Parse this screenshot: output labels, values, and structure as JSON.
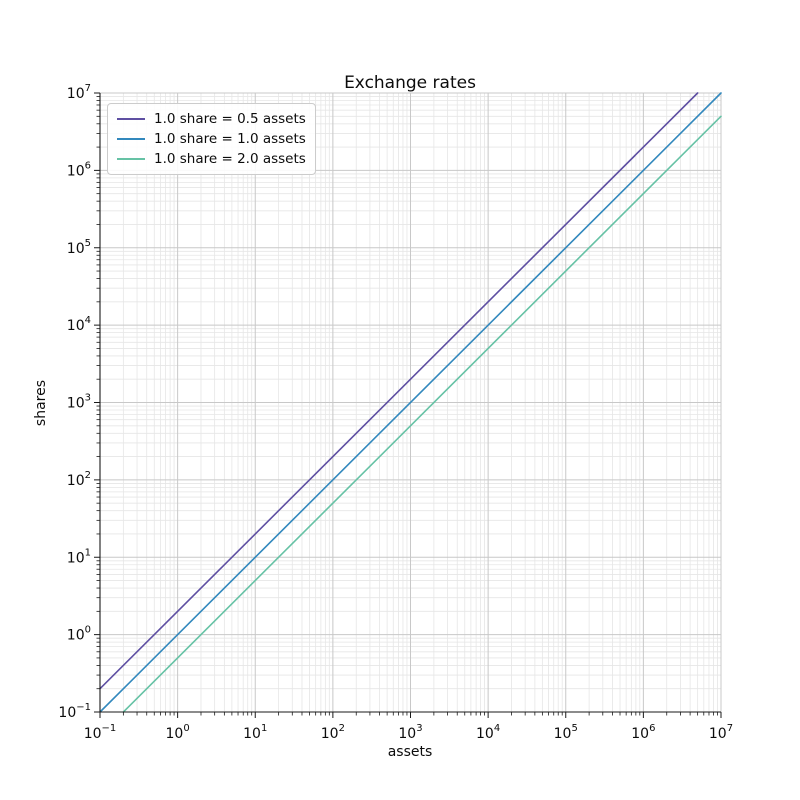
{
  "chart_data": {
    "type": "line",
    "title": "Exchange rates",
    "xlabel": "assets",
    "ylabel": "shares",
    "xscale": "log",
    "yscale": "log",
    "xlim": [
      0.1,
      10000000
    ],
    "ylim": [
      0.1,
      10000000
    ],
    "x_tick_exponents": [
      -1,
      0,
      1,
      2,
      3,
      4,
      5,
      6,
      7
    ],
    "y_tick_exponents": [
      -1,
      0,
      1,
      2,
      3,
      4,
      5,
      6,
      7
    ],
    "grid": {
      "major": true,
      "minor": true,
      "minor_multiples": [
        2,
        3,
        4,
        5,
        6,
        7,
        8,
        9
      ]
    },
    "legend_position": "upper left",
    "series": [
      {
        "name": "1.0 share = 0.5 assets",
        "color": "#5e4fa2",
        "assets_per_share": 0.5,
        "relation": "shares = assets / 0.5",
        "points": [
          {
            "assets": 0.1,
            "shares": 0.2
          },
          {
            "assets": 5000000,
            "shares": 10000000
          }
        ]
      },
      {
        "name": "1.0 share = 1.0 assets",
        "color": "#3288bd",
        "assets_per_share": 1.0,
        "relation": "shares = assets / 1.0",
        "points": [
          {
            "assets": 0.1,
            "shares": 0.1
          },
          {
            "assets": 10000000,
            "shares": 10000000
          }
        ]
      },
      {
        "name": "1.0 share = 2.0 assets",
        "color": "#66c2a5",
        "assets_per_share": 2.0,
        "relation": "shares = assets / 2.0",
        "points": [
          {
            "assets": 0.2,
            "shares": 0.1
          },
          {
            "assets": 10000000,
            "shares": 5000000
          }
        ]
      }
    ]
  },
  "colors": {
    "spine": "#1a1a1a",
    "tick": "#1a1a1a",
    "grid_major": "#c8c8c8",
    "grid_minor": "#e6e6e6",
    "background": "#ffffff",
    "legend_border": "#cccccc"
  }
}
